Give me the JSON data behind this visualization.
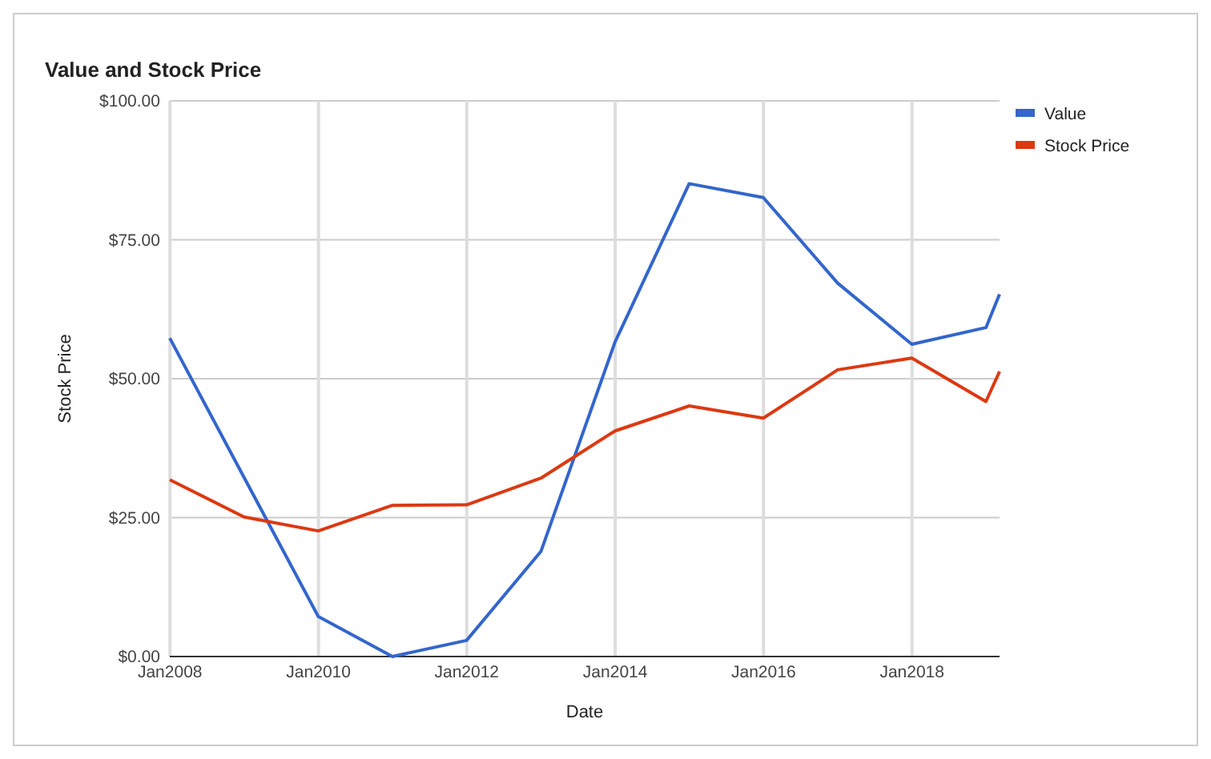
{
  "chart_data": {
    "type": "line",
    "title": "Value and Stock Price",
    "xlabel": "Date",
    "ylabel": "Stock Price",
    "x": [
      "2007-12-31",
      "2008-12-31",
      "2009-12-31",
      "2010-12-31",
      "2011-12-31",
      "2012-12-31",
      "2013-12-31",
      "2014-12-31",
      "2015-12-31",
      "2016-12-31",
      "2017-12-31",
      "2018-12-31",
      "2019-03-08"
    ],
    "series": [
      {
        "name": "Value",
        "color": "#3366cc",
        "values": [
          57.3,
          32.2,
          7.2,
          0,
          2.9,
          18.9,
          56.6,
          85.1,
          82.6,
          67.2,
          56.2,
          59.2,
          65.2
        ]
      },
      {
        "name": "Stock Price",
        "color": "#dc3912",
        "values": [
          31.8,
          25.1,
          22.6,
          27.2,
          27.3,
          32.1,
          40.6,
          45.1,
          42.9,
          51.6,
          53.7,
          45.9,
          51.3
        ]
      }
    ],
    "xlim": [
      "2007-12-31",
      "2019-03-08"
    ],
    "xticks": [
      {
        "value": "2008-01-01",
        "label": "Jan2008"
      },
      {
        "value": "2010-01-01",
        "label": "Jan2010"
      },
      {
        "value": "2012-01-01",
        "label": "Jan2012"
      },
      {
        "value": "2014-01-01",
        "label": "Jan2014"
      },
      {
        "value": "2016-01-01",
        "label": "Jan2016"
      },
      {
        "value": "2018-01-01",
        "label": "Jan2018"
      }
    ],
    "ylim": [
      0,
      100
    ],
    "yticks": [
      {
        "value": 0,
        "label": "$0.00"
      },
      {
        "value": 25,
        "label": "$25.00"
      },
      {
        "value": 50,
        "label": "$50.00"
      },
      {
        "value": 75,
        "label": "$75.00"
      },
      {
        "value": 100,
        "label": "$100.00"
      }
    ],
    "grid": true,
    "legend": "right",
    "marker": "none",
    "line_style": "solid"
  }
}
